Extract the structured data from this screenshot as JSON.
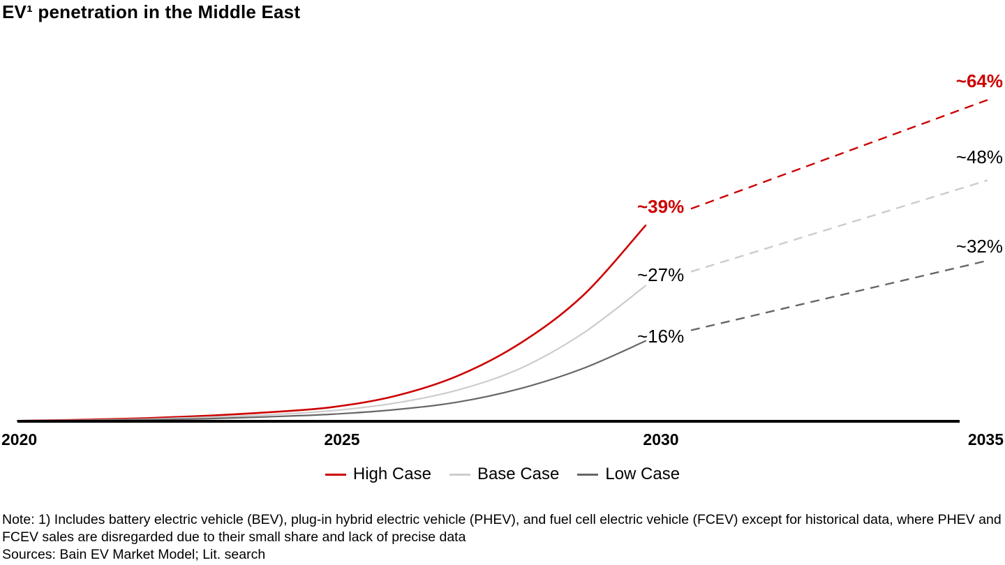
{
  "title": "EV¹ penetration in the Middle East",
  "chart_data": {
    "type": "line",
    "title": "EV¹ penetration in the Middle East",
    "x_axis": {
      "range": [
        2020,
        2035
      ],
      "tick_labels": [
        "2020",
        "2025",
        "2030",
        "2035"
      ]
    },
    "y_axis": {
      "unit": "%",
      "range_implied": [
        0,
        70
      ],
      "gridlines": false,
      "visible_axis": "x-only"
    },
    "legend_position": "bottom-center",
    "years_solid": [
      2020,
      2021,
      2022,
      2023,
      2024,
      2025,
      2026,
      2027,
      2028,
      2029,
      2030
    ],
    "series": [
      {
        "name": "High Case",
        "color": "#cc0000",
        "values": [
          0.1,
          0.3,
          0.6,
          1.1,
          1.8,
          2.8,
          5,
          9,
          15.5,
          25,
          39
        ],
        "projection": {
          "year": 2035,
          "value": 64,
          "style": "dashed"
        },
        "label_2030": "~39%",
        "label_2035": "~64%",
        "label_style": "bold-red"
      },
      {
        "name": "Base Case",
        "color": "#cccccc",
        "values": [
          0.1,
          0.2,
          0.4,
          0.8,
          1.3,
          2.1,
          3.6,
          6.2,
          10.5,
          17.5,
          27
        ],
        "projection": {
          "year": 2035,
          "value": 48,
          "style": "dashed"
        },
        "label_2030": "~27%",
        "label_2035": "~48%",
        "label_style": "regular-black"
      },
      {
        "name": "Low Case",
        "color": "#666666",
        "values": [
          0.05,
          0.15,
          0.3,
          0.5,
          0.9,
          1.4,
          2.3,
          3.8,
          6.5,
          10.5,
          16
        ],
        "projection": {
          "year": 2035,
          "value": 32,
          "style": "dashed"
        },
        "label_2030": "~16%",
        "label_2035": "~32%",
        "label_style": "regular-black"
      }
    ],
    "axis_color": "#000000"
  },
  "legend": {
    "items": [
      {
        "label": "High Case",
        "color": "#cc0000"
      },
      {
        "label": "Base Case",
        "color": "#cccccc"
      },
      {
        "label": "Low Case",
        "color": "#666666"
      }
    ]
  },
  "footer": {
    "note": "Note: 1) Includes battery electric vehicle (BEV), plug-in hybrid electric vehicle (PHEV), and fuel cell electric vehicle (FCEV) except for historical data, where PHEV and FCEV sales are disregarded due to their small share and lack of precise data",
    "sources": "Sources: Bain EV Market Model; Lit. search"
  }
}
